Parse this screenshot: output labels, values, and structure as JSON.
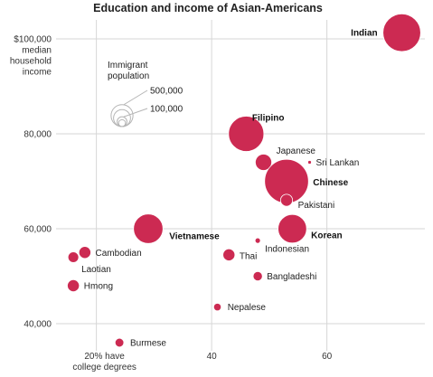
{
  "chart_data": {
    "type": "scatter",
    "title": "Education and income of Asian-Americans",
    "x_tick_labels": [
      "20% have",
      "college degrees",
      "40",
      "60"
    ],
    "y_tick_labels": [
      "$100,000",
      "median",
      "household",
      "income",
      "80,000",
      "60,000",
      "40,000"
    ],
    "xlim": [
      13,
      77
    ],
    "ylim": [
      32000,
      104000
    ],
    "x_ticks": [
      20,
      40,
      60
    ],
    "y_ticks": [
      100000,
      80000,
      60000,
      40000
    ],
    "grid": true,
    "legend": {
      "title_lines": [
        "Immigrant",
        "population"
      ],
      "entries": [
        {
          "label": "500,000",
          "value": 500000
        },
        {
          "label": "100,000",
          "value": 100000
        }
      ],
      "extra_circle_values": [
        300000,
        50000
      ]
    },
    "points": [
      {
        "label": "Indian",
        "x": 73,
        "y": 101300,
        "pop": 1480000,
        "bold": true,
        "anchor": "end"
      },
      {
        "label": "Filipino",
        "x": 46,
        "y": 80000,
        "pop": 1300000,
        "bold": true,
        "anchor": "start"
      },
      {
        "label": "Japanese",
        "x": 49,
        "y": 74000,
        "pop": 280000,
        "bold": false,
        "anchor": "start"
      },
      {
        "label": "Sri Lankan",
        "x": 57,
        "y": 74000,
        "pop": 10000,
        "bold": false,
        "anchor": "start"
      },
      {
        "label": "Chinese",
        "x": 53,
        "y": 70000,
        "pop": 2000000,
        "bold": true,
        "anchor": "start"
      },
      {
        "label": "Pakistani",
        "x": 53,
        "y": 66000,
        "pop": 150000,
        "bold": false,
        "anchor": "start"
      },
      {
        "label": "Vietnamese",
        "x": 29,
        "y": 60000,
        "pop": 900000,
        "bold": true,
        "anchor": "start"
      },
      {
        "label": "Korean",
        "x": 54,
        "y": 60000,
        "pop": 850000,
        "bold": true,
        "anchor": "start"
      },
      {
        "label": "Indonesian",
        "x": 48,
        "y": 57500,
        "pop": 30000,
        "bold": false,
        "anchor": "start"
      },
      {
        "label": "Cambodian",
        "x": 18,
        "y": 55000,
        "pop": 150000,
        "bold": false,
        "anchor": "start"
      },
      {
        "label": "Laotian",
        "x": 16,
        "y": 54000,
        "pop": 120000,
        "bold": false,
        "anchor": "start"
      },
      {
        "label": "Thai",
        "x": 43,
        "y": 54500,
        "pop": 150000,
        "bold": false,
        "anchor": "start"
      },
      {
        "label": "Bangladeshi",
        "x": 48,
        "y": 50000,
        "pop": 90000,
        "bold": false,
        "anchor": "start"
      },
      {
        "label": "Hmong",
        "x": 16,
        "y": 48000,
        "pop": 150000,
        "bold": false,
        "anchor": "start"
      },
      {
        "label": "Nepalese",
        "x": 41,
        "y": 43500,
        "pop": 60000,
        "bold": false,
        "anchor": "start"
      },
      {
        "label": "Burmese",
        "x": 24,
        "y": 36000,
        "pop": 80000,
        "bold": false,
        "anchor": "start"
      }
    ]
  }
}
